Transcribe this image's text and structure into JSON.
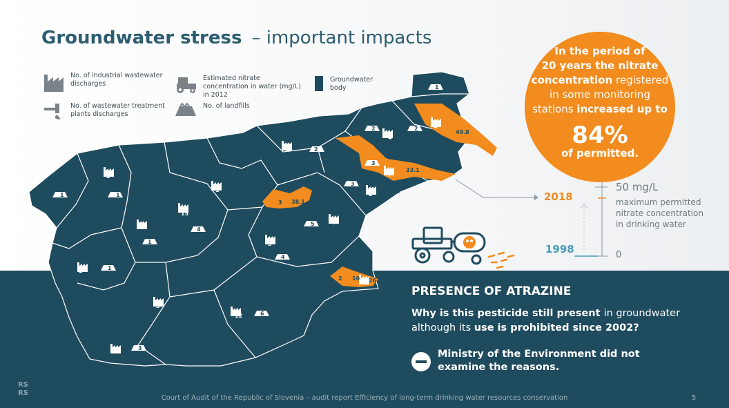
{
  "title": {
    "main": "Groundwater stress",
    "sub": "– important impacts"
  },
  "legend": {
    "industrial": "No. of industrial wastewater discharges",
    "wwtp": "No. of wastewater treatment plants discharges",
    "nitrate": "Estimated nitrate concentration in water (mg/L) in 2012",
    "landfills": "No. of landfills",
    "body": "Groundwater body"
  },
  "colors": {
    "groundwater": "#1f4b5e",
    "orange": "#f28c1e",
    "band": "#1f4b5e"
  },
  "highlight": {
    "l1": "In the period of",
    "l2": "20 years the nitrate",
    "l3_bold": "concentration",
    "l3_rest": " registered",
    "l4": "in some monitoring",
    "l5_a": "stations ",
    "l5_bold": "increased up to",
    "value": "84%",
    "l6": "of permitted."
  },
  "scale": {
    "year_top": "2018",
    "year_bottom": "1998",
    "max_value": "50 mg/L",
    "max_desc_1": "maximum permitted",
    "max_desc_2": "nitrate concentration",
    "max_desc_3": "in drinking water",
    "zero": "0"
  },
  "map_labels": [
    "1",
    "2",
    "1",
    "1",
    "3",
    "1",
    "15",
    "4",
    "2",
    "1",
    "1",
    "1",
    "3",
    "5",
    "4",
    "5",
    "2",
    "2",
    "4",
    "3",
    "7",
    "33.1",
    "38.9",
    "20.1",
    "2",
    "3",
    "4",
    "44",
    "49.8",
    "1",
    "39.5",
    "2",
    "4",
    "2",
    "1",
    "4",
    "1",
    "5",
    "2",
    "6",
    "5",
    "3",
    "12",
    "6",
    "3",
    "7",
    "3",
    "10",
    "26.5",
    "1",
    "38.1",
    "3"
  ],
  "atrazine": {
    "title": "PRESENCE OF ATRAZINE",
    "q1_bold": "Why is this pesticide still present ",
    "q1_rest": " in groundwater although its ",
    "q2_bold": "use is prohibited since 2002?",
    "finding_1": "Ministry of the Environment did not",
    "finding_2": "examine the reasons."
  },
  "footer": "Court of Audit of the Republic of Slovenia – audit report Efficiency of long-term drinking water resources conservation",
  "page_number": "5",
  "logo_l1": "RS",
  "logo_l2": "RS"
}
